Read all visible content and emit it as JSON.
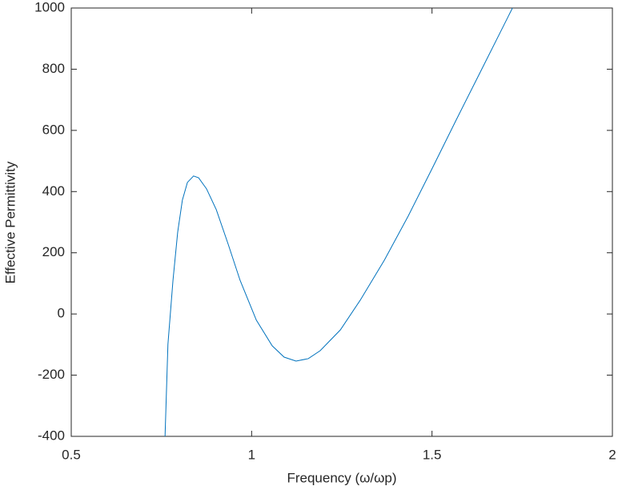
{
  "chart_data": {
    "type": "line",
    "x_label": "Frequency (ω/ωp)",
    "y_label": "Effective Permittivity",
    "x": [
      0.76,
      0.768,
      0.782,
      0.795,
      0.808,
      0.822,
      0.839,
      0.853,
      0.875,
      0.902,
      0.935,
      0.968,
      1.013,
      1.057,
      1.09,
      1.123,
      1.157,
      1.19,
      1.246,
      1.301,
      1.368,
      1.434,
      1.501,
      1.567,
      1.634,
      1.723
    ],
    "series": [
      {
        "color": "#0072bd",
        "values": [
          -400,
          -99,
          110,
          267,
          372,
          430,
          451,
          445,
          409,
          341,
          228,
          110,
          -20,
          -104,
          -141,
          -154,
          -146,
          -120,
          -52,
          45,
          176,
          320,
          477,
          634,
          791,
          1000
        ]
      }
    ],
    "xlim": [
      0.5,
      2
    ],
    "xticks": [
      0.5,
      1,
      1.5,
      2
    ],
    "ylim": [
      -400,
      1000
    ],
    "yticks": [
      -400,
      -200,
      0,
      200,
      400,
      600,
      800,
      1000
    ]
  }
}
